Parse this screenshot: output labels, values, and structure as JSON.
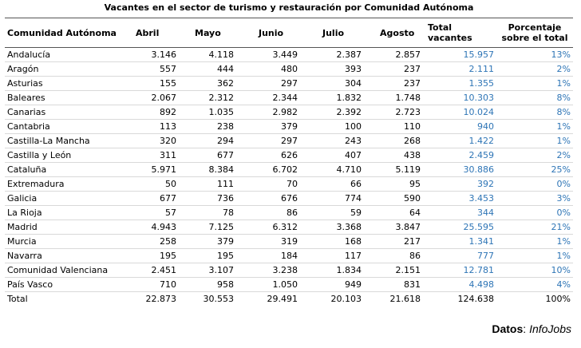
{
  "title": "Vacantes en el sector de turismo y restauración por Comunidad Autónoma",
  "table": {
    "header": [
      "Comunidad Autónoma",
      "Abril",
      "Mayo",
      "Junio",
      "Julio",
      "Agosto",
      "Total vacantes",
      "Porcentaje sobre el total"
    ],
    "rows": [
      [
        "Andalucía",
        "3.146",
        "4.118",
        "3.449",
        "2.387",
        "2.857",
        "15.957",
        "13%"
      ],
      [
        "Aragón",
        "557",
        "444",
        "480",
        "393",
        "237",
        "2.111",
        "2%"
      ],
      [
        "Asturias",
        "155",
        "362",
        "297",
        "304",
        "237",
        "1.355",
        "1%"
      ],
      [
        "Baleares",
        "2.067",
        "2.312",
        "2.344",
        "1.832",
        "1.748",
        "10.303",
        "8%"
      ],
      [
        "Canarias",
        "892",
        "1.035",
        "2.982",
        "2.392",
        "2.723",
        "10.024",
        "8%"
      ],
      [
        "Cantabria",
        "113",
        "238",
        "379",
        "100",
        "110",
        "940",
        "1%"
      ],
      [
        "Castilla-La Mancha",
        "320",
        "294",
        "297",
        "243",
        "268",
        "1.422",
        "1%"
      ],
      [
        "Castilla y León",
        "311",
        "677",
        "626",
        "407",
        "438",
        "2.459",
        "2%"
      ],
      [
        "Cataluña",
        "5.971",
        "8.384",
        "6.702",
        "4.710",
        "5.119",
        "30.886",
        "25%"
      ],
      [
        "Extremadura",
        "50",
        "111",
        "70",
        "66",
        "95",
        "392",
        "0%"
      ],
      [
        "Galicia",
        "677",
        "736",
        "676",
        "774",
        "590",
        "3.453",
        "3%"
      ],
      [
        "La Rioja",
        "57",
        "78",
        "86",
        "59",
        "64",
        "344",
        "0%"
      ],
      [
        "Madrid",
        "4.943",
        "7.125",
        "6.312",
        "3.368",
        "3.847",
        "25.595",
        "21%"
      ],
      [
        "Murcia",
        "258",
        "379",
        "319",
        "168",
        "217",
        "1.341",
        "1%"
      ],
      [
        "Navarra",
        "195",
        "195",
        "184",
        "117",
        "86",
        "777",
        "1%"
      ],
      [
        "Comunidad Valenciana",
        "2.451",
        "3.107",
        "3.238",
        "1.834",
        "2.151",
        "12.781",
        "10%"
      ],
      [
        "País Vasco",
        "710",
        "958",
        "1.050",
        "949",
        "831",
        "4.498",
        "4%"
      ],
      [
        "Total",
        "22.873",
        "30.553",
        "29.491",
        "20.103",
        "21.618",
        "124.638",
        "100%"
      ]
    ]
  },
  "footer": {
    "label": "Datos",
    "source": "InfoJobs"
  }
}
